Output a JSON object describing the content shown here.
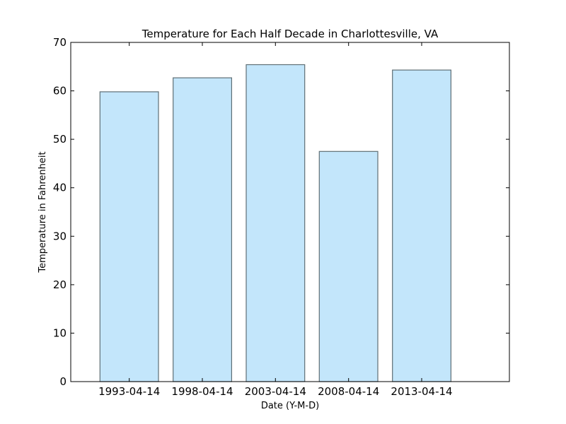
{
  "chart_data": {
    "type": "bar",
    "title": "Temperature for Each Half Decade in Charlottesville, VA",
    "xlabel": "Date (Y-M-D)",
    "ylabel": "Temperature in Fahrenheit",
    "categories": [
      "1993-04-14",
      "1998-04-14",
      "2003-04-14",
      "2008-04-14",
      "2013-04-14"
    ],
    "values": [
      59.8,
      62.7,
      65.4,
      47.5,
      64.3
    ],
    "ylim": [
      0,
      70
    ],
    "yticks": [
      "0",
      "10",
      "20",
      "30",
      "40",
      "50",
      "60",
      "70"
    ],
    "grid": false,
    "colors": {
      "bar_fill": "#c3e6fb",
      "bar_edge": "#5f6f75",
      "axes": "#000000"
    }
  }
}
